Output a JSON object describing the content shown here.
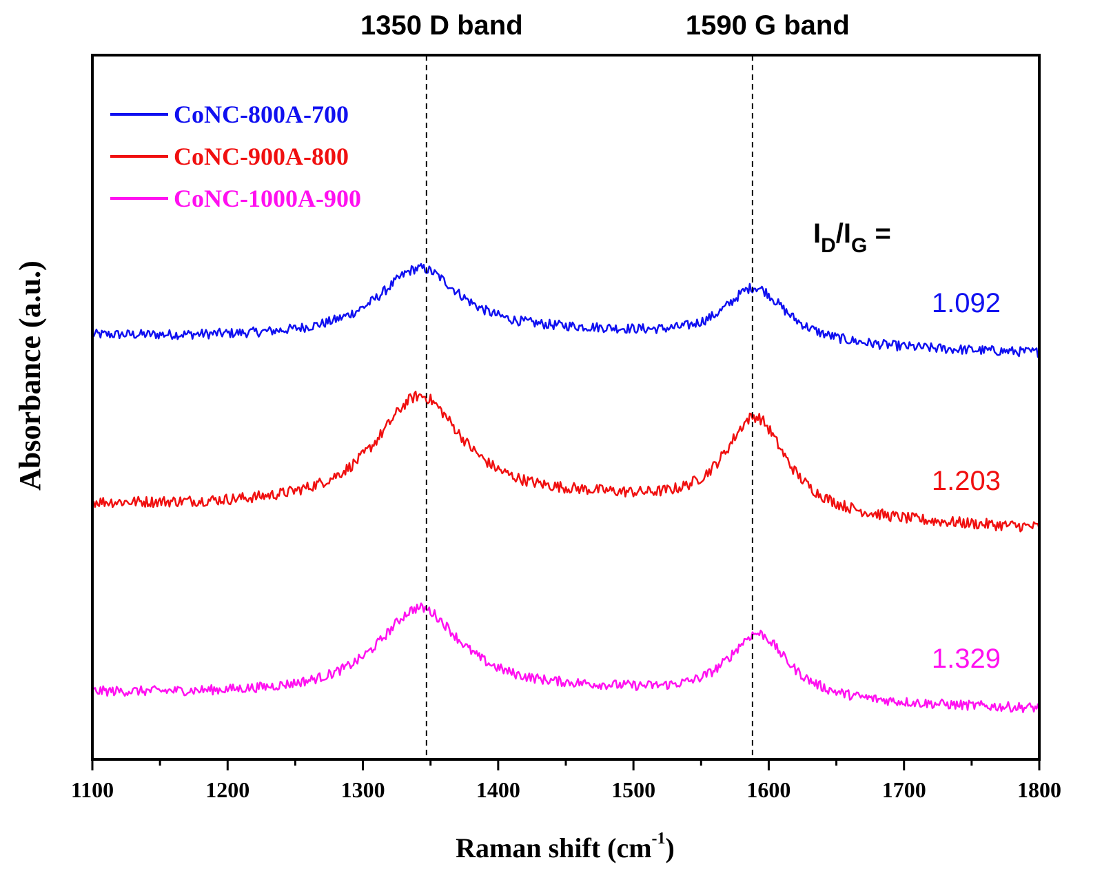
{
  "chart_data": {
    "type": "line",
    "title": "",
    "xlabel": "Raman shift (cm",
    "xlabel_sup": "-1",
    "xlabel_close": ")",
    "ylabel": "Absorbance (a.u.)",
    "xlim": [
      1100,
      1800
    ],
    "ylim": [
      0,
      1
    ],
    "x_ticks": [
      1100,
      1200,
      1300,
      1400,
      1500,
      1600,
      1700,
      1800
    ],
    "x_tick_labels": [
      "1100",
      "1200",
      "1300",
      "1400",
      "1500",
      "1600",
      "1700",
      "1800"
    ],
    "x_minor_step": 50,
    "y_ticks_shown": false,
    "legend_position": "top-left",
    "reference_lines": [
      {
        "x": 1347,
        "label": "1350 D band"
      },
      {
        "x": 1588,
        "label": "1590 G band"
      }
    ],
    "ratio_header": {
      "main": "I",
      "sub1": "D",
      "slash": "/I",
      "sub2": "G",
      "eq": " ="
    },
    "series": [
      {
        "name": "CoNC-800A-700",
        "color": "#1010f0",
        "ratio_label": "1.092",
        "baseline_left": 0.6,
        "baseline_right": 0.575,
        "bands": [
          {
            "center": 1342,
            "width": 38,
            "height": 0.1
          },
          {
            "center": 1590,
            "width": 28,
            "height": 0.08
          },
          {
            "center": 1470,
            "width": 90,
            "height": 0.015
          }
        ],
        "noise": 0.007
      },
      {
        "name": "CoNC-900A-800",
        "color": "#f01010",
        "ratio_label": "1.203",
        "baseline_left": 0.36,
        "baseline_right": 0.325,
        "bands": [
          {
            "center": 1342,
            "width": 40,
            "height": 0.16
          },
          {
            "center": 1590,
            "width": 28,
            "height": 0.14
          },
          {
            "center": 1470,
            "width": 90,
            "height": 0.02
          }
        ],
        "noise": 0.008
      },
      {
        "name": "CoNC-1000A-900",
        "color": "#ff10f0",
        "ratio_label": "1.329",
        "baseline_left": 0.093,
        "baseline_right": 0.07,
        "bands": [
          {
            "center": 1342,
            "width": 38,
            "height": 0.125
          },
          {
            "center": 1592,
            "width": 27,
            "height": 0.095
          },
          {
            "center": 1470,
            "width": 90,
            "height": 0.012
          }
        ],
        "noise": 0.007
      }
    ]
  }
}
